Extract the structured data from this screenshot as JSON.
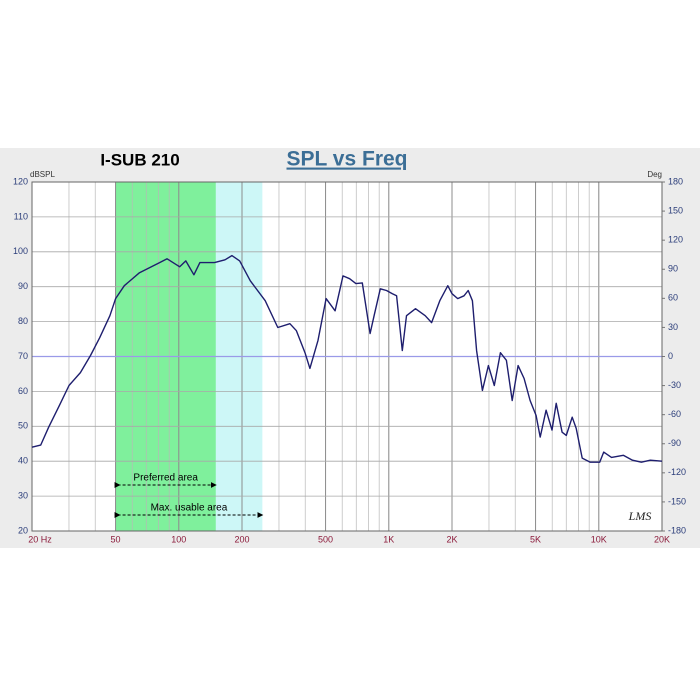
{
  "chart_data": {
    "type": "line",
    "title": "SPL vs Freq",
    "subtitle": "I-SUB 210",
    "y_label": "dBSPL",
    "y2_label": "Deg",
    "logo": "LMS",
    "xscale": "log",
    "xlim": [
      20,
      20000
    ],
    "xticks": [
      {
        "value": 20,
        "label": "20  Hz"
      },
      50,
      100,
      200,
      500,
      {
        "value": 1000,
        "label": "1K"
      },
      {
        "value": 2000,
        "label": "2K"
      },
      {
        "value": 5000,
        "label": "5K"
      },
      {
        "value": 10000,
        "label": "10K"
      },
      {
        "value": 20000,
        "label": "20K"
      }
    ],
    "ylim": [
      20,
      120
    ],
    "yticks": [
      20,
      30,
      40,
      50,
      60,
      70,
      80,
      90,
      100,
      110,
      120
    ],
    "y2lim": [
      -180,
      180
    ],
    "y2ticks": [
      -180,
      -150,
      -120,
      -90,
      -60,
      -30,
      0,
      30,
      60,
      90,
      120,
      150,
      180
    ],
    "grid": true,
    "zero_line_color": "#9a9ae8",
    "bands": [
      {
        "label": "Preferred area",
        "range": [
          50,
          150
        ],
        "color": "#7ff09c"
      },
      {
        "label": "Max. usable area",
        "range": [
          50,
          250
        ],
        "color": "#cdf7f7"
      }
    ],
    "x": [
      20,
      22,
      24,
      27,
      30,
      34,
      38,
      42,
      47,
      50,
      55,
      65,
      81,
      88,
      101,
      108,
      118,
      126,
      148,
      166,
      179,
      195,
      219,
      258,
      296,
      338,
      363,
      399,
      421,
      460,
      503,
      555,
      605,
      651,
      697,
      748,
      815,
      851,
      911,
      975,
      1040,
      1090,
      1160,
      1215,
      1340,
      1490,
      1600,
      1750,
      1910,
      2000,
      2130,
      2280,
      2390,
      2500,
      2620,
      2790,
      2980,
      3180,
      3400,
      3630,
      3870,
      4130,
      4410,
      4710,
      5030,
      5260,
      5610,
      5990,
      6270,
      6690,
      7000,
      7470,
      7810,
      8340,
      9110,
      10100,
      10550,
      11500,
      13080,
      14470,
      15960,
      17600,
      20000
    ],
    "series": [
      {
        "name": "SPL",
        "color": "#1e1e6e",
        "values": [
          44,
          44.6,
          49.7,
          56,
          61.7,
          65.4,
          70.3,
          75.4,
          81.7,
          86.6,
          90.3,
          94,
          96.9,
          98,
          95.7,
          97.4,
          93.4,
          96.9,
          96.9,
          97.7,
          98.9,
          97.4,
          91.7,
          86,
          78.3,
          79.4,
          77.4,
          71.1,
          66.6,
          74.6,
          86.6,
          83.1,
          93.1,
          92.3,
          90.9,
          91.1,
          76.6,
          81.7,
          89.4,
          88.9,
          88,
          87.4,
          71.7,
          81.7,
          83.7,
          81.7,
          79.7,
          86,
          90.3,
          88,
          86.6,
          87.4,
          88.9,
          86,
          71.7,
          60.3,
          67.4,
          61.7,
          71.1,
          68.9,
          57.4,
          67.4,
          63.7,
          57.4,
          53.1,
          46.9,
          54.6,
          48.9,
          56.6,
          48.3,
          47.4,
          52.6,
          49.4,
          40.9,
          39.7,
          39.7,
          42.6,
          41.1,
          41.7,
          40.3,
          39.7,
          40.3,
          40
        ]
      }
    ]
  }
}
